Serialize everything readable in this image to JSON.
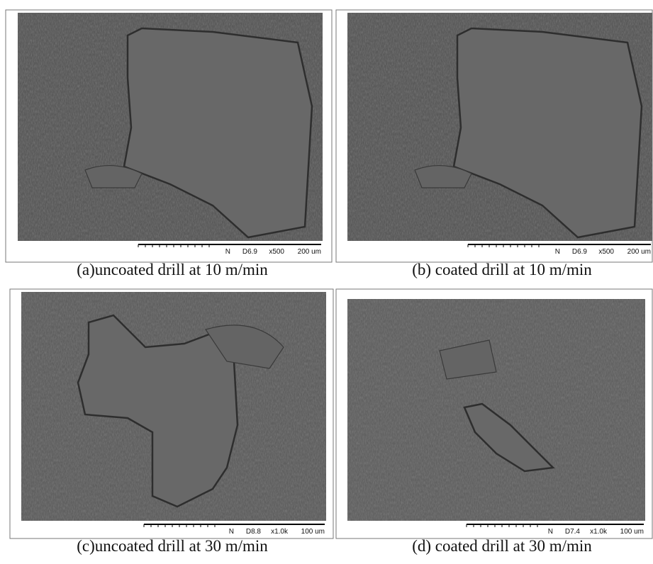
{
  "panels": [
    {
      "caption": "(a)uncoated drill at 10 m/min",
      "scale_bar": {
        "detector": "N",
        "distance": "D6.9",
        "magnification": "x500",
        "scale": "200 um"
      }
    },
    {
      "caption": "(b) coated drill at 10 m/min",
      "scale_bar": {
        "detector": "N",
        "distance": "D6.9",
        "magnification": "x500",
        "scale": "200 um"
      }
    },
    {
      "caption": "(c)uncoated drill at 30 m/min",
      "scale_bar": {
        "detector": "N",
        "distance": "D8.8",
        "magnification": "x1.0k",
        "scale": "100 um"
      }
    },
    {
      "caption": "(d) coated drill at 30 m/min",
      "scale_bar": {
        "detector": "N",
        "distance": "D7.4",
        "magnification": "x1.0k",
        "scale": "100 um"
      }
    }
  ]
}
